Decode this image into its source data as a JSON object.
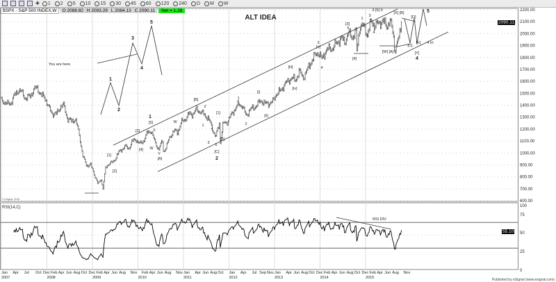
{
  "toolbar": {
    "intervals": [
      "1",
      "2",
      "5",
      "10",
      "15",
      "30",
      "45",
      "60",
      "120",
      "240",
      "D",
      "M",
      "W"
    ]
  },
  "legend": {
    "symbol": "$SPX - S&P 500 INDEX,W",
    "open": "O 2088.82",
    "high": "H 2093.29",
    "low": "L 2084.13",
    "close": "C 2090.11",
    "net": "Net = 1.28"
  },
  "title": "ALT IDEA",
  "note": "You are here",
  "rsi_title": "RSI(14,C)",
  "rsi_note": "RSI DIV",
  "watermark": "© eSignal, 2015",
  "footer": "Published by eSignal (www.esignal.com)",
  "last_price_tag": "2090.11",
  "last_rsi_tag": "55.10",
  "wave_labels": [
    "1",
    "[5]",
    "[3]",
    "X",
    "[4]",
    "W",
    "Y",
    "[A]",
    "[1]",
    "[2]",
    "W",
    "X",
    "[B]",
    "2",
    "1",
    "3",
    "4",
    "5",
    "[C]",
    "2",
    "[1]",
    "[2]",
    "1",
    "2",
    "[i]",
    "[ii]",
    "[iii]",
    "[iv]",
    "3",
    "[v]",
    "4",
    "[4]",
    "[3]",
    "5",
    "1",
    "3",
    "3 [5] 5",
    "2",
    "4",
    "[X] [B]",
    "[D]",
    "[W] [A]",
    "[C]",
    "[E]",
    "4 tri",
    "[Y]",
    "4",
    "5",
    "1",
    "2",
    "3",
    "4",
    "5"
  ],
  "chart_data": [
    {
      "type": "bar",
      "title": "ALT IDEA",
      "series_name": "$SPX - S&P 500 INDEX,W",
      "ylim": [
        600,
        2200
      ],
      "yticks": [
        2200,
        2100,
        2000,
        1900,
        1800,
        1700,
        1600,
        1500,
        1400,
        1300,
        1200,
        1100,
        1000,
        900,
        800,
        700,
        600
      ],
      "ytick_labels": [
        "2200.00",
        "2100.00",
        "2000.00",
        "1900.00",
        "1800.00",
        "1700.00",
        "1600.00",
        "1500.00",
        "1400.00",
        "1300.00",
        "1200.00",
        "1100.00",
        "1000.00",
        "900.00",
        "800.00",
        "700.00",
        "600.00"
      ],
      "grid": true,
      "monthly_close_start": "2007-01",
      "monthly_close": [
        1438,
        1407,
        1421,
        1482,
        1530,
        1503,
        1455,
        1474,
        1527,
        1549,
        1481,
        1468,
        1378,
        1330,
        1323,
        1386,
        1400,
        1280,
        1267,
        1283,
        1166,
        969,
        896,
        903,
        826,
        735,
        798,
        873,
        919,
        919,
        987,
        1021,
        1057,
        1036,
        1096,
        1115,
        1074,
        1104,
        1169,
        1187,
        1089,
        1031,
        1102,
        1049,
        1141,
        1183,
        1181,
        1258,
        1286,
        1327,
        1326,
        1364,
        1345,
        1321,
        1292,
        1219,
        1131,
        1253,
        1247,
        1258,
        1312,
        1366,
        1408,
        1398,
        1310,
        1362,
        1379,
        1407,
        1441,
        1412,
        1416,
        1426,
        1498,
        1515,
        1569,
        1598,
        1631,
        1606,
        1686,
        1633,
        1682,
        1757,
        1806,
        1848,
        1783,
        1859,
        1872,
        1884,
        1924,
        1960,
        1931,
        2003,
        1972,
        2018,
        2068,
        2059,
        1995,
        2105,
        2068,
        2086,
        2107,
        2063,
        2104,
        1972,
        1920,
        2090
      ],
      "swing_points": [
        {
          "date": "2009-03",
          "price": 667
        },
        {
          "date": "2010-07",
          "price": 1011
        },
        {
          "date": "2011-10",
          "price": 1075
        },
        {
          "date": "2014-10",
          "price": 1821
        },
        {
          "date": "2015-08",
          "price": 1867
        }
      ],
      "last": 2090.11
    },
    {
      "type": "line",
      "title": "RSI(14,C)",
      "ylim": [
        0,
        100
      ],
      "yticks": [
        100,
        75,
        50,
        25,
        0
      ],
      "levels": [
        70,
        30
      ],
      "last": 55.1,
      "annotation": "RSI DIV"
    }
  ],
  "x_axis": {
    "ticks": [
      [
        "2007-01",
        "Jan"
      ],
      [
        "2007-04",
        "Apr"
      ],
      [
        "2007-07",
        "Jul"
      ],
      [
        "2007-10",
        "Oct"
      ],
      [
        "2007-12",
        "Dec"
      ],
      [
        "2008-02",
        "Feb"
      ],
      [
        "2008-04",
        "Apr"
      ],
      [
        "2008-06",
        "Jun"
      ],
      [
        "2008-08",
        "Aug"
      ],
      [
        "2008-10",
        "Oct"
      ],
      [
        "2008-12",
        "Dec"
      ],
      [
        "2009-02",
        "Feb"
      ],
      [
        "2009-04",
        "Apr"
      ],
      [
        "2009-06",
        "Jun"
      ],
      [
        "2009-08",
        "Aug"
      ],
      [
        "2009-11",
        "Nov"
      ],
      [
        "2010-02",
        "Feb"
      ],
      [
        "2010-04",
        "Apr"
      ],
      [
        "2010-06",
        "Jun"
      ],
      [
        "2010-08",
        "Aug"
      ],
      [
        "2010-11",
        "Nov"
      ],
      [
        "2011-01",
        "Jan"
      ],
      [
        "2011-04",
        "Apr"
      ],
      [
        "2011-06",
        "Jun"
      ],
      [
        "2011-08",
        "Aug"
      ],
      [
        "2011-10",
        "Oct"
      ],
      [
        "2012-01",
        "Jan"
      ],
      [
        "2012-04",
        "Apr"
      ],
      [
        "2012-07",
        "Jul"
      ],
      [
        "2012-09",
        "Sep"
      ],
      [
        "2012-11",
        "Nov"
      ],
      [
        "2013-01",
        "Jan"
      ],
      [
        "2013-04",
        "Apr"
      ],
      [
        "2013-06",
        "Jun"
      ],
      [
        "2013-08",
        "Aug"
      ],
      [
        "2013-10",
        "Oct"
      ],
      [
        "2013-12",
        "Dec"
      ],
      [
        "2014-02",
        "Feb"
      ],
      [
        "2014-04",
        "Apr"
      ],
      [
        "2014-06",
        "Jun"
      ],
      [
        "2014-08",
        "Aug"
      ],
      [
        "2014-10",
        "Oct"
      ],
      [
        "2014-12",
        "Dec"
      ],
      [
        "2015-02",
        "Feb"
      ],
      [
        "2015-04",
        "Apr"
      ],
      [
        "2015-06",
        "Jun"
      ],
      [
        "2015-08",
        "Aug"
      ],
      [
        "2015-11",
        "Nov"
      ]
    ],
    "years": [
      "2007",
      "2008",
      "2009",
      "2010",
      "2011",
      "2012",
      "2013",
      "2014",
      "2015"
    ]
  },
  "rsi_axis": [
    "100",
    "75",
    "50",
    "25",
    "0"
  ]
}
